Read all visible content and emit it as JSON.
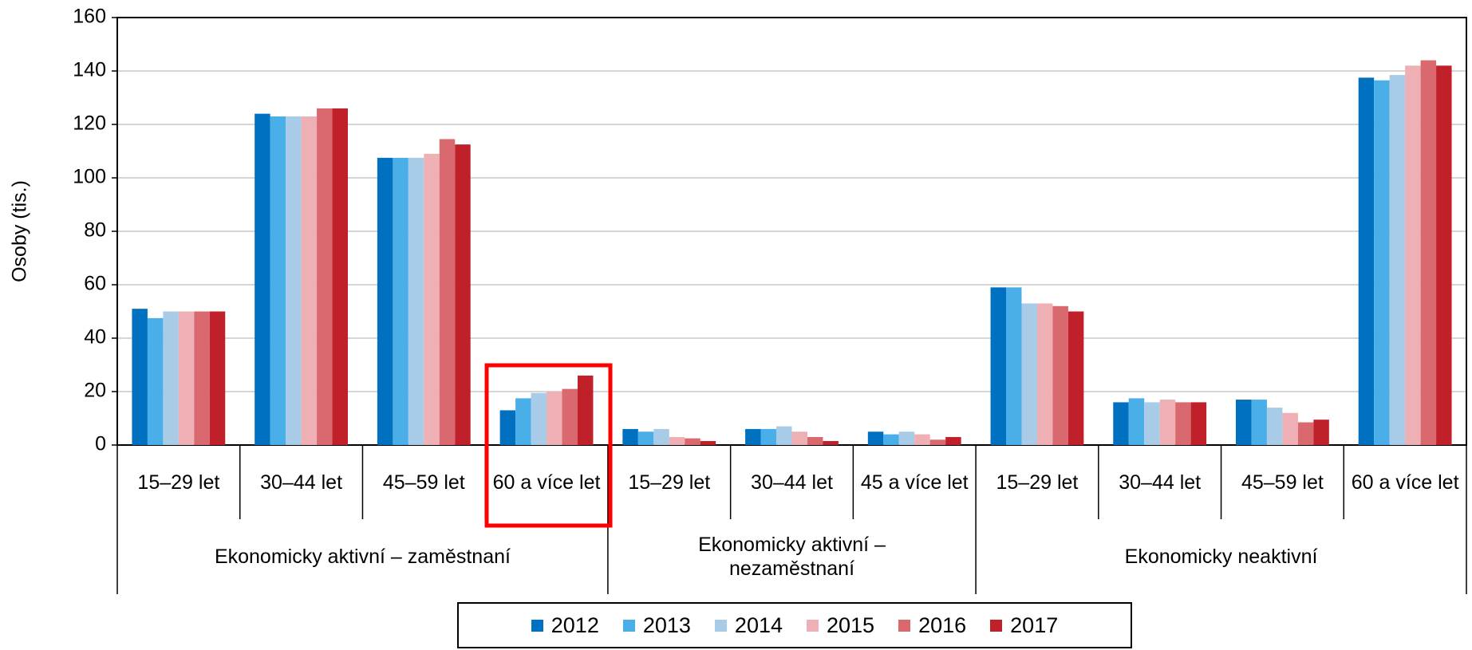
{
  "chart_data": {
    "type": "bar",
    "y_label": "Osoby (tis.)",
    "categories": [
      "15–29 let",
      "30–44 let",
      "45–59 let",
      "60 a více let",
      "15–29 let",
      "30–44 let",
      "45 a více let",
      "15–29 let",
      "30–44 let",
      "45–59 let",
      "60 a více let"
    ],
    "groups": [
      {
        "label": "Ekonomicky aktivní – zaměstnaní",
        "span": 4
      },
      {
        "label": "Ekonomicky aktivní – nezaměstnaní",
        "span": 3
      },
      {
        "label": "Ekonomicky neaktivní",
        "span": 4
      }
    ],
    "series": [
      {
        "name": "2012",
        "color": "#0070c0",
        "values": [
          51,
          124,
          107.5,
          13,
          6,
          6,
          5,
          59,
          16,
          17,
          137.5
        ]
      },
      {
        "name": "2013",
        "color": "#4aaee8",
        "values": [
          47.5,
          123,
          107.5,
          17.5,
          5,
          6,
          4,
          59,
          17.5,
          17,
          136.5
        ]
      },
      {
        "name": "2014",
        "color": "#a8cce8",
        "values": [
          50,
          123,
          107.5,
          19.5,
          6,
          7,
          5,
          53,
          16,
          14,
          138.5
        ]
      },
      {
        "name": "2015",
        "color": "#eeb0b4",
        "values": [
          50,
          123,
          109,
          20,
          3,
          5,
          4,
          53,
          17,
          12,
          142
        ]
      },
      {
        "name": "2016",
        "color": "#d9696e",
        "values": [
          50,
          126,
          114.5,
          21,
          2.5,
          3,
          2,
          52,
          16,
          8.5,
          144
        ]
      },
      {
        "name": "2017",
        "color": "#c0202a",
        "values": [
          50,
          126,
          112.5,
          26,
          1.5,
          1.5,
          3,
          50,
          16,
          9.5,
          142
        ]
      }
    ],
    "ylim": [
      0,
      160
    ],
    "yticks": [
      0,
      20,
      40,
      60,
      80,
      100,
      120,
      140,
      160
    ],
    "grid": true
  }
}
